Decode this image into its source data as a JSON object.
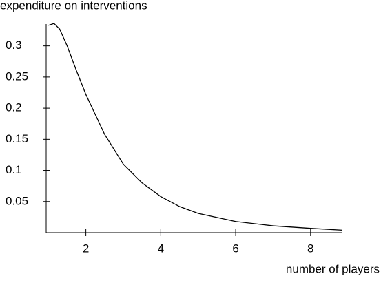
{
  "chart_data": {
    "type": "line",
    "y_label": "expenditure on interventions",
    "x_label": "number of players",
    "x": [
      1.0,
      1.15,
      1.3,
      1.5,
      1.75,
      2,
      2.5,
      3,
      3.5,
      4,
      4.5,
      5,
      6,
      7,
      8,
      8.85
    ],
    "series": [
      {
        "color": "#000000",
        "values": [
          0.333,
          0.336,
          0.327,
          0.3,
          0.26,
          0.222,
          0.158,
          0.11,
          0.08,
          0.058,
          0.042,
          0.031,
          0.018,
          0.011,
          0.007,
          0.004
        ]
      }
    ],
    "xlim": [
      0.94,
      8.85
    ],
    "xticks": [
      2,
      4,
      6,
      8
    ],
    "ylim": [
      0,
      0.335
    ],
    "yticks": [
      0.05,
      0.1,
      0.15,
      0.2,
      0.25,
      0.3
    ]
  }
}
